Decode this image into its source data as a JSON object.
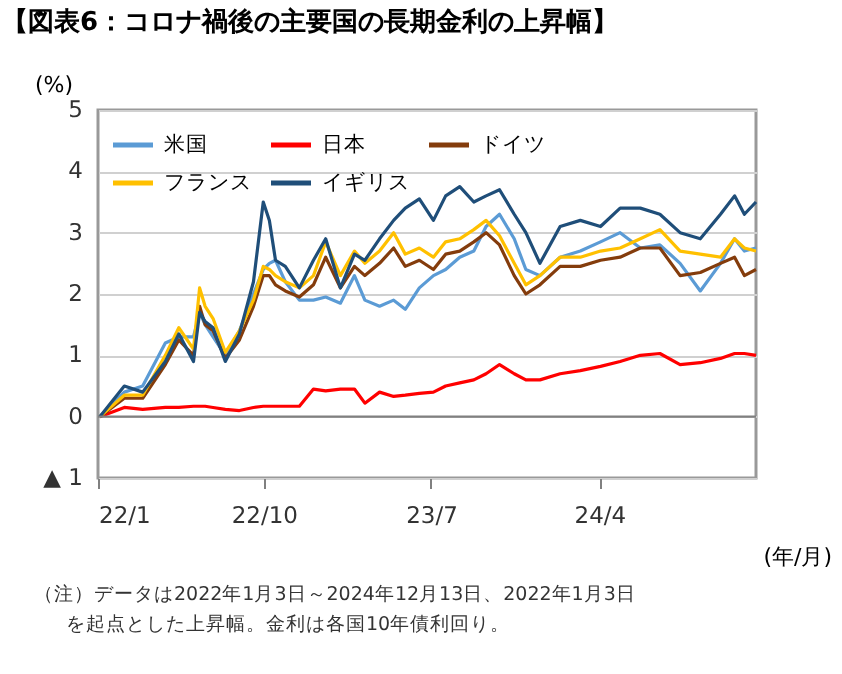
{
  "chart_data": {
    "type": "line",
    "title": "【図表6：コロナ禍後の主要国の長期金利の上昇幅】",
    "ylabel": "(%)",
    "xlabel": "(年/月)",
    "annotations": [
      "（注）データは2022年1月3日～2024年12月13日、2022年1月3日を起点とした上昇幅。金利は各国10年債利回り。"
    ],
    "x": [
      "2022-01-06",
      "2022-02-15",
      "2022-03-17",
      "2022-04-23",
      "2022-05-15",
      "2022-06-08",
      "2022-06-18",
      "2022-06-27",
      "2022-07-10",
      "2022-07-30",
      "2022-08-22",
      "2022-09-14",
      "2022-09-30",
      "2022-10-10",
      "2022-10-20",
      "2022-11-05",
      "2022-11-28",
      "2022-12-21",
      "2023-01-10",
      "2023-02-03",
      "2023-02-26",
      "2023-03-15",
      "2023-04-08",
      "2023-05-01",
      "2023-05-20",
      "2023-06-12",
      "2023-07-05",
      "2023-07-25",
      "2023-08-17",
      "2023-09-09",
      "2023-09-29",
      "2023-10-21",
      "2023-11-14",
      "2023-12-03",
      "2023-12-26",
      "2024-01-28",
      "2024-03-01",
      "2024-04-03",
      "2024-05-05",
      "2024-06-07",
      "2024-07-09",
      "2024-08-11",
      "2024-09-13",
      "2024-10-16",
      "2024-11-08",
      "2024-11-24",
      "2024-12-13"
    ],
    "series": [
      {
        "name": "米国",
        "color": "#5b9bd5",
        "values": [
          0,
          0.4,
          0.5,
          1.2,
          1.3,
          1.3,
          1.7,
          1.5,
          1.3,
          1.0,
          1.4,
          2.0,
          2.4,
          2.5,
          2.55,
          2.2,
          1.9,
          1.9,
          1.95,
          1.85,
          2.3,
          1.9,
          1.8,
          1.9,
          1.75,
          2.1,
          2.3,
          2.4,
          2.6,
          2.7,
          3.1,
          3.3,
          2.9,
          2.4,
          2.3,
          2.6,
          2.7,
          2.85,
          3.0,
          2.75,
          2.8,
          2.5,
          2.05,
          2.5,
          2.9,
          2.7,
          2.75
        ]
      },
      {
        "name": "日本",
        "color": "#ff0000",
        "values": [
          0,
          0.15,
          0.12,
          0.15,
          0.15,
          0.17,
          0.17,
          0.17,
          0.15,
          0.12,
          0.1,
          0.15,
          0.17,
          0.17,
          0.17,
          0.17,
          0.17,
          0.45,
          0.42,
          0.45,
          0.45,
          0.22,
          0.4,
          0.33,
          0.35,
          0.38,
          0.4,
          0.5,
          0.55,
          0.6,
          0.7,
          0.85,
          0.7,
          0.6,
          0.6,
          0.7,
          0.75,
          0.82,
          0.9,
          1.0,
          1.03,
          0.85,
          0.88,
          0.95,
          1.03,
          1.03,
          1.0
        ]
      },
      {
        "name": "ドイツ",
        "color": "#843c0c",
        "values": [
          0,
          0.3,
          0.3,
          0.85,
          1.25,
          1.0,
          1.8,
          1.5,
          1.4,
          0.95,
          1.25,
          1.8,
          2.3,
          2.3,
          2.15,
          2.05,
          1.95,
          2.15,
          2.6,
          2.1,
          2.45,
          2.3,
          2.5,
          2.75,
          2.45,
          2.55,
          2.4,
          2.65,
          2.7,
          2.85,
          3.0,
          2.8,
          2.3,
          2.0,
          2.15,
          2.45,
          2.45,
          2.55,
          2.6,
          2.75,
          2.75,
          2.3,
          2.35,
          2.5,
          2.6,
          2.3,
          2.4
        ]
      },
      {
        "name": "フランス",
        "color": "#ffc000",
        "values": [
          0,
          0.35,
          0.35,
          1.0,
          1.45,
          1.1,
          2.1,
          1.8,
          1.6,
          1.05,
          1.4,
          1.9,
          2.45,
          2.4,
          2.3,
          2.2,
          2.1,
          2.3,
          2.85,
          2.3,
          2.7,
          2.5,
          2.7,
          3.0,
          2.65,
          2.75,
          2.6,
          2.85,
          2.9,
          3.05,
          3.2,
          2.95,
          2.5,
          2.15,
          2.3,
          2.6,
          2.6,
          2.7,
          2.75,
          2.9,
          3.05,
          2.7,
          2.65,
          2.6,
          2.9,
          2.75,
          2.7
        ]
      },
      {
        "name": "イギリス",
        "color": "#1f4e79",
        "values": [
          0,
          0.5,
          0.4,
          0.9,
          1.35,
          0.9,
          1.7,
          1.55,
          1.45,
          0.9,
          1.35,
          2.2,
          3.5,
          3.2,
          2.55,
          2.45,
          2.1,
          2.55,
          2.9,
          2.1,
          2.65,
          2.55,
          2.9,
          3.2,
          3.4,
          3.55,
          3.2,
          3.6,
          3.75,
          3.5,
          3.6,
          3.7,
          3.3,
          3.0,
          2.5,
          3.1,
          3.2,
          3.1,
          3.4,
          3.4,
          3.3,
          3.0,
          2.9,
          3.3,
          3.6,
          3.3,
          3.5
        ]
      }
    ],
    "xlim": [
      "2022-01-03",
      "2024-12-13"
    ],
    "xticks": [
      {
        "value": "2022-01-03",
        "label": "22/1"
      },
      {
        "value": "2022-10-01",
        "label": "22/10"
      },
      {
        "value": "2023-07-01",
        "label": "23/7"
      },
      {
        "value": "2024-04-01",
        "label": "24/4"
      }
    ],
    "ylim": [
      -1,
      5
    ],
    "yticks": [
      {
        "value": -1,
        "label": "▲ 1"
      },
      0,
      1,
      2,
      3,
      4,
      5
    ],
    "ref_lines": [
      {
        "axis": "y",
        "value": 0,
        "color": "#808080"
      }
    ],
    "grid": "y",
    "legend": "top left",
    "line_style": "solid",
    "marker": "none"
  }
}
